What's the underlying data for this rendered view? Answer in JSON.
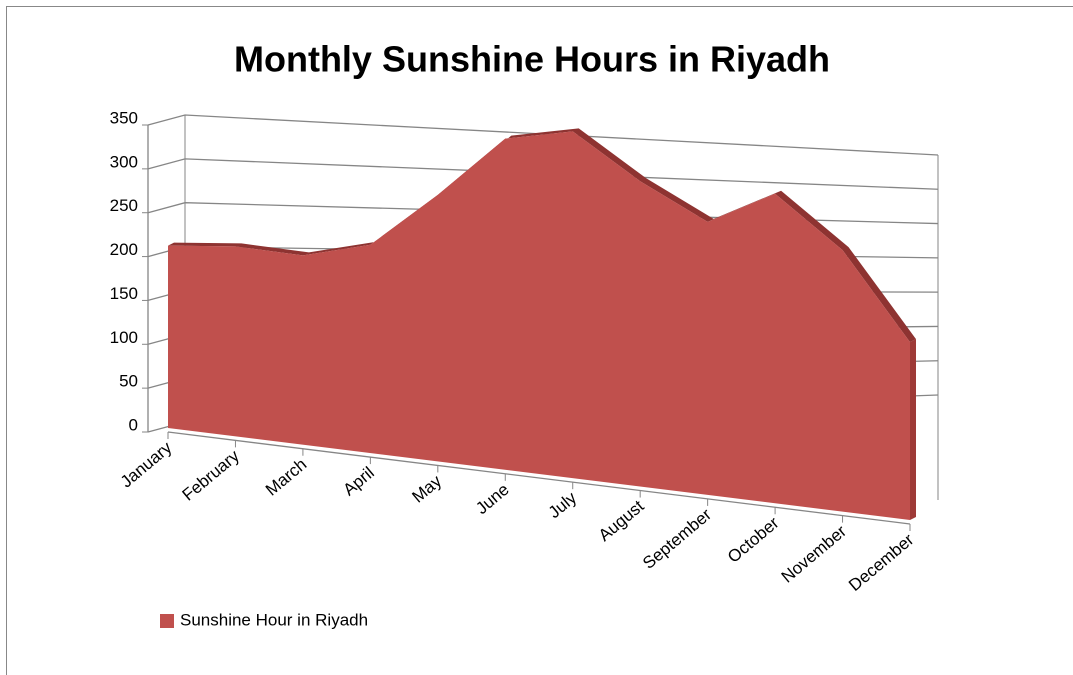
{
  "chart_data": {
    "type": "area3d",
    "title": "Monthly Sunshine Hours in Riyadh",
    "categories": [
      "January",
      "February",
      "March",
      "April",
      "May",
      "June",
      "July",
      "August",
      "September",
      "October",
      "November",
      "December"
    ],
    "series": [
      {
        "name": "Sunshine Hour in Riyadh",
        "color": "#c0504d",
        "values": [
          212,
          213,
          205,
          218,
          270,
          325,
          330,
          282,
          245,
          270,
          222,
          147
        ]
      }
    ],
    "ylim": [
      0,
      350
    ],
    "yticks": [
      0,
      50,
      100,
      150,
      200,
      250,
      300,
      350
    ],
    "grid": true,
    "legend": "bottom-left"
  }
}
